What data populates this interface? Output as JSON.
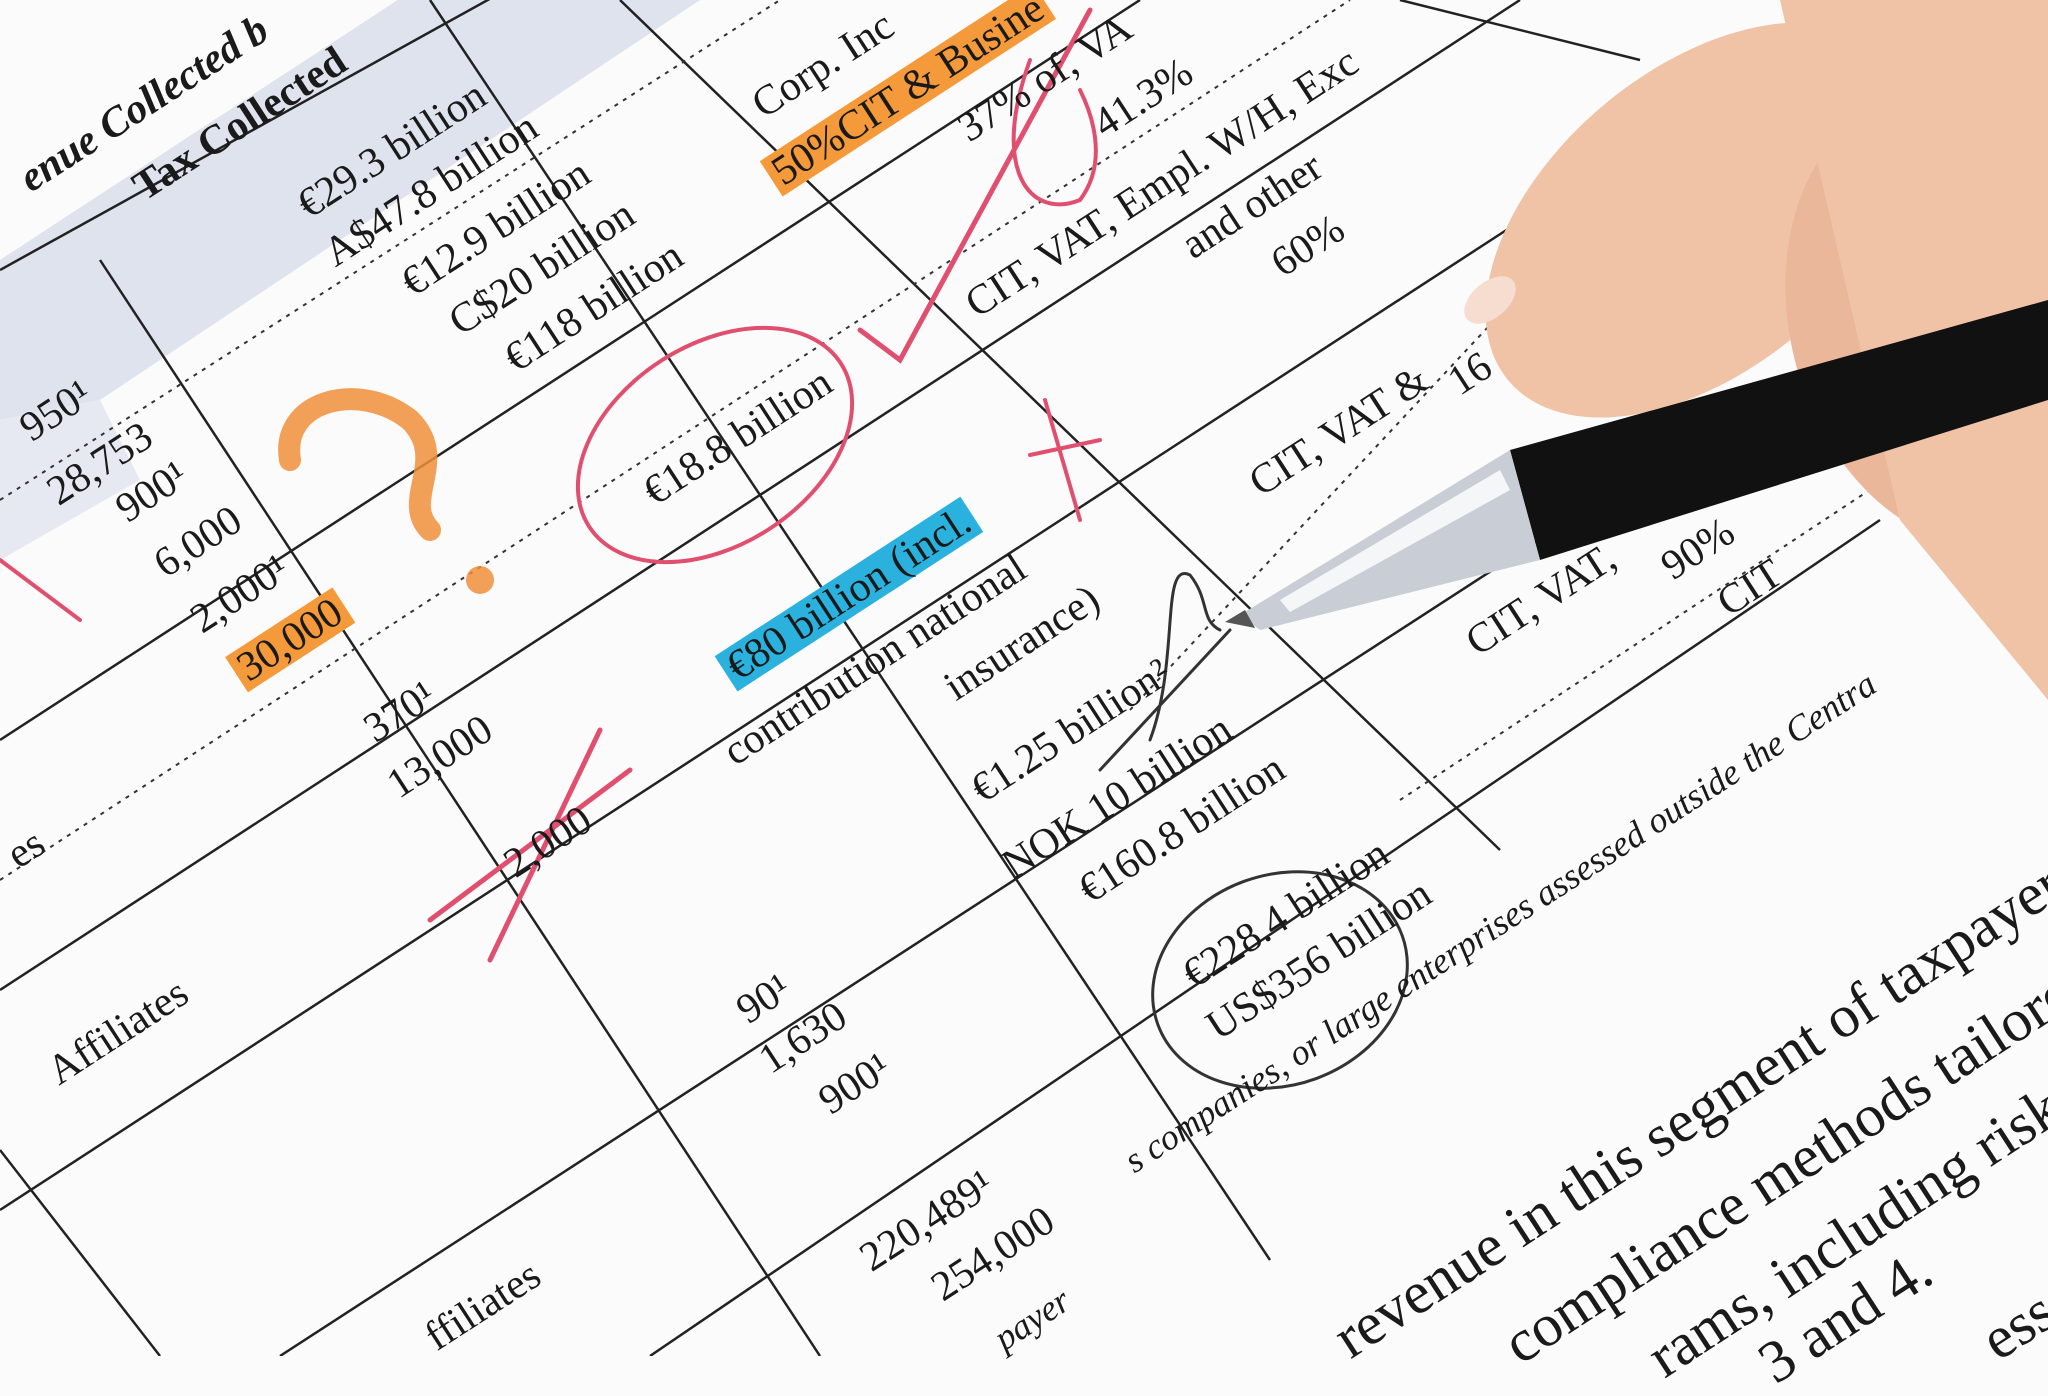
{
  "table": {
    "header_1": "enue Collected b",
    "header_2": "Tax Collected",
    "tax_collected": [
      "€29.3 billion",
      "A$47.8 billion",
      "€12.9 billion",
      "C$20 billion",
      "€118 billion"
    ],
    "counts_left": [
      "950¹",
      "28,753",
      "900¹",
      "6,000",
      "2,000¹",
      "30,000",
      "370¹",
      "13,000",
      "2,000"
    ],
    "circled_value": "€18.8 billion",
    "highlighted_value": "€80 billion (incl.",
    "value_line_2": "contribution national",
    "value_line_3": "insurance)",
    "corp_label": "Corp. Inc",
    "highlighted_share": "50%CIT & Busine",
    "share_1": "37% of, VA",
    "share_2": "41.3%",
    "tax_types_1": "CIT, VAT, Empl. W/H, Exc",
    "tax_types_2": "and other",
    "share_3": "60%",
    "tax_types_3": "CIT, VAT & ",
    "share_4": "16",
    "value_4": "€1.25 billion²",
    "value_5": "NOK 10 billion",
    "value_6": "€160.8 billion",
    "tax_types_4": "CIT, VAT,",
    "share_5": "90%",
    "tax_types_5": "CIT",
    "value_7": "€228.4 billion",
    "value_8": "US$356 billion",
    "row_label_1": "es",
    "row_label_2": "Affiliates",
    "counts_lower": [
      "90¹",
      "1,630",
      "900¹",
      "220,489¹",
      "254,000"
    ],
    "row_label_3": "ffiliates",
    "row_label_4": "payer"
  },
  "footnote": "s companies, or large enterprises assessed outside the Centra",
  "body_text": [
    "revenue in this segment of taxpayer",
    "compliance methods tailored",
    "rams, including risk m",
    "3 and 4.",
    "ess"
  ],
  "colors": {
    "orange_highlight": "#f59a3a",
    "blue_highlight": "#2ab1de",
    "red_pencil": "#e0506e",
    "header_shade": "#dfe3ee",
    "skin": "#f0c3a6",
    "pen_body": "#111111"
  }
}
